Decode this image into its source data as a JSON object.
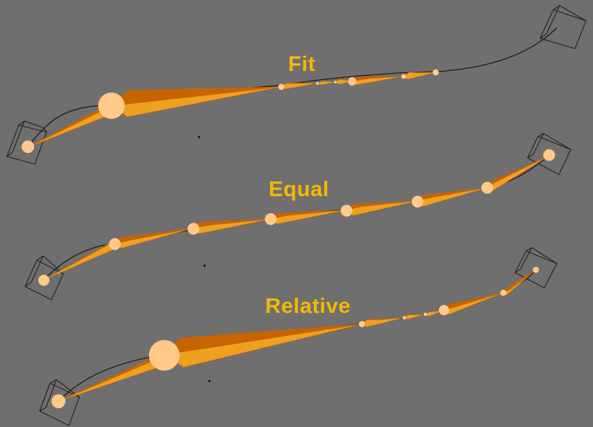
{
  "viewport": {
    "background": "#6f6f6f"
  },
  "colors": {
    "bone_light": "#f0a020",
    "bone_dark": "#c86400",
    "joint_sphere": "#ffc98a",
    "label": "#f5b800",
    "curve": "#1a1a1a",
    "empty_cube": "#1e1e1e"
  },
  "chains": [
    {
      "id": "fit",
      "label": "Fit",
      "mode": "Fit",
      "bone_count": 7
    },
    {
      "id": "equal",
      "label": "Equal",
      "mode": "Equal",
      "bone_count": 7
    },
    {
      "id": "relative",
      "label": "Relative",
      "mode": "Relative",
      "bone_count": 7
    }
  ],
  "icons": [
    "empty-cube-icon",
    "origin-dot-icon"
  ]
}
